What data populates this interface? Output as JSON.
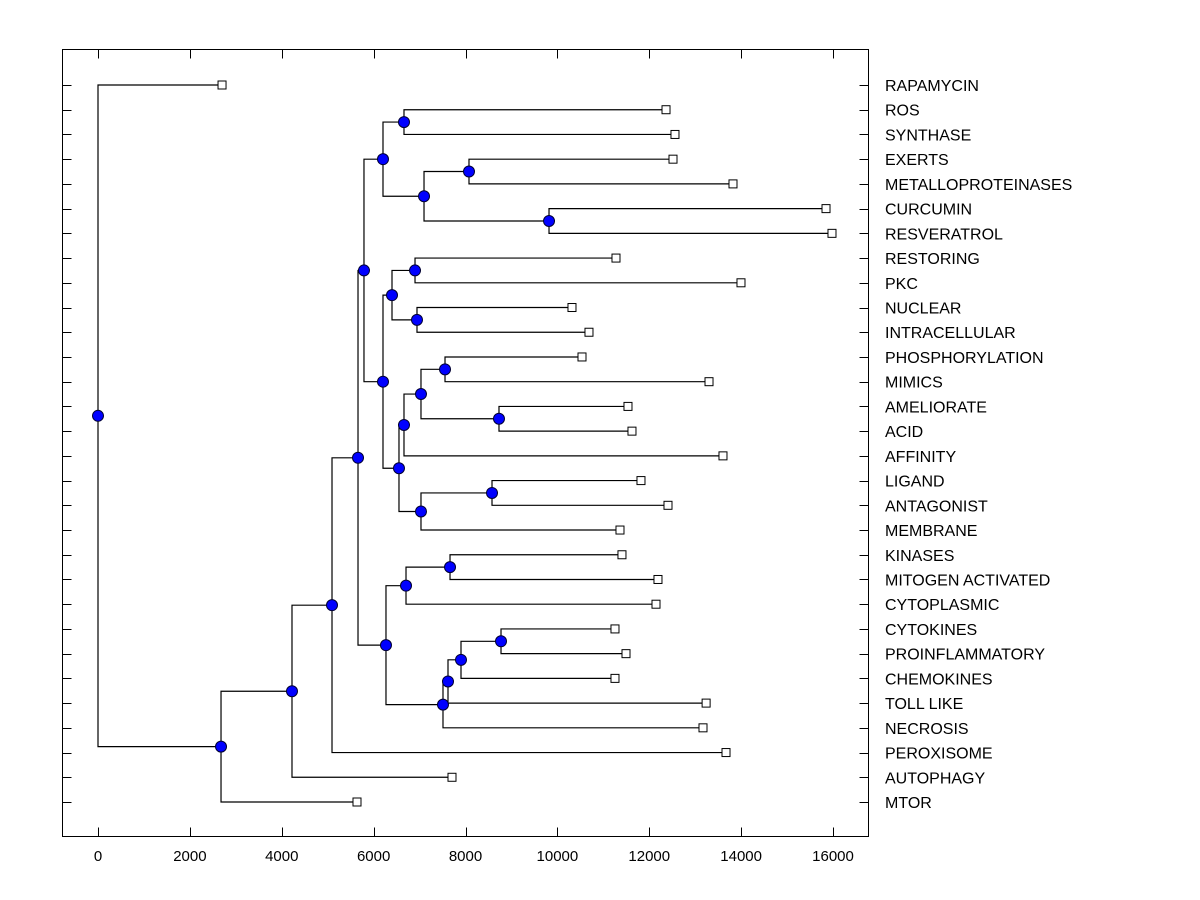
{
  "chart_data": {
    "type": "dendrogram",
    "title": "",
    "xlabel": "",
    "ylabel": "",
    "xlim": [
      -800,
      16800
    ],
    "x_ticks": [
      0,
      2000,
      4000,
      6000,
      8000,
      10000,
      12000,
      14000,
      16000
    ],
    "x_tick_labels": [
      "0",
      "2000",
      "4000",
      "6000",
      "8000",
      "10000",
      "12000",
      "14000",
      "16000"
    ],
    "grid": false,
    "leaf_order": [
      "RAPAMYCIN",
      "ROS",
      "SYNTHASE",
      "EXERTS",
      "METALLOPROTEINASES",
      "CURCUMIN",
      "RESVERATROL",
      "RESTORING",
      "PKC",
      "NUCLEAR",
      "INTRACELLULAR",
      "PHOSPHORYLATION",
      "MIMICS",
      "AMELIORATE",
      "ACID",
      "AFFINITY",
      "LIGAND",
      "ANTAGONIST",
      "MEMBRANE",
      "KINASES",
      "MITOGEN ACTIVATED",
      "CYTOPLASMIC",
      "CYTOKINES",
      "PROINFLAMMATORY",
      "CHEMOKINES",
      "TOLL LIKE",
      "NECROSIS",
      "PEROXISOME",
      "AUTOPHAGY",
      "MTOR"
    ],
    "leaves": {
      "RAPAMYCIN": 2700,
      "ROS": 12365,
      "SYNTHASE": 12560,
      "EXERTS": 12517,
      "METALLOPROTEINASES": 13823,
      "CURCUMIN": 15848,
      "RESVERATROL": 15978,
      "RESTORING": 11276,
      "PKC": 13997,
      "NUCLEAR": 10318,
      "INTRACELLULAR": 10688,
      "PHOSPHORYLATION": 10536,
      "MIMICS": 13301,
      "AMELIORATE": 11537,
      "ACID": 11624,
      "AFFINITY": 13605,
      "LIGAND": 11820,
      "ANTAGONIST": 12408,
      "MEMBRANE": 11363,
      "KINASES": 11406,
      "MITOGEN ACTIVATED": 12190,
      "CYTOPLASMIC": 12147,
      "CYTOKINES": 11254,
      "PROINFLAMMATORY": 11494,
      "CHEMOKINES": 11254,
      "TOLL LIKE": 13238,
      "NECROSIS": 13170,
      "PEROXISOME": 13671,
      "AUTOPHAGY": 7706,
      "MTOR": 5638
    },
    "nodes": [
      {
        "id": "root",
        "x": 0,
        "children": [
          "RAPAMYCIN",
          "n_e"
        ]
      },
      {
        "id": "n_e",
        "x": 2678,
        "children": [
          "n_d",
          "MTOR"
        ]
      },
      {
        "id": "n_d",
        "x": 4223,
        "children": [
          "n_c",
          "AUTOPHAGY"
        ]
      },
      {
        "id": "n_c",
        "x": 5094,
        "children": [
          "n_b",
          "PEROXISOME"
        ]
      },
      {
        "id": "n_b",
        "x": 5660,
        "children": [
          "n_a",
          "n_low"
        ]
      },
      {
        "id": "n_a",
        "x": 5790,
        "children": [
          "n_top",
          "n_mid"
        ]
      },
      {
        "id": "n_top",
        "x": 6204,
        "children": [
          "n_ros",
          "n_ex_res"
        ]
      },
      {
        "id": "n_ros",
        "x": 6661,
        "children": [
          "ROS",
          "SYNTHASE"
        ]
      },
      {
        "id": "n_ex_res",
        "x": 7097,
        "children": [
          "n_ex_met",
          "n_cur_res"
        ]
      },
      {
        "id": "n_ex_met",
        "x": 8076,
        "children": [
          "EXERTS",
          "METALLOPROTEINASES"
        ]
      },
      {
        "id": "n_cur_res",
        "x": 9818,
        "children": [
          "CURCUMIN",
          "RESVERATROL"
        ]
      },
      {
        "id": "n_mid",
        "x": 6204,
        "children": [
          "n_rest_intra",
          "n_phos_mem"
        ]
      },
      {
        "id": "n_rest_intra",
        "x": 6400,
        "children": [
          "n_rest_pkc",
          "n_nuc_int"
        ]
      },
      {
        "id": "n_rest_pkc",
        "x": 6901,
        "children": [
          "RESTORING",
          "PKC"
        ]
      },
      {
        "id": "n_nuc_int",
        "x": 6944,
        "children": [
          "NUCLEAR",
          "INTRACELLULAR"
        ]
      },
      {
        "id": "n_phos_mem",
        "x": 6552,
        "children": [
          "n_phos_aff",
          "n_lig_mem"
        ]
      },
      {
        "id": "n_phos_aff",
        "x": 6661,
        "children": [
          "n_phos_acid",
          "AFFINITY"
        ]
      },
      {
        "id": "n_phos_acid",
        "x": 7031,
        "children": [
          "n_phos_mim",
          "n_ame_acid"
        ]
      },
      {
        "id": "n_phos_mim",
        "x": 7554,
        "children": [
          "PHOSPHORYLATION",
          "MIMICS"
        ]
      },
      {
        "id": "n_ame_acid",
        "x": 8729,
        "children": [
          "AMELIORATE",
          "ACID"
        ]
      },
      {
        "id": "n_lig_mem",
        "x": 7031,
        "children": [
          "n_lig_ant",
          "MEMBRANE"
        ]
      },
      {
        "id": "n_lig_ant",
        "x": 8577,
        "children": [
          "LIGAND",
          "ANTAGONIST"
        ]
      },
      {
        "id": "n_low",
        "x": 6269,
        "children": [
          "n_kin_cyto",
          "n_nec"
        ]
      },
      {
        "id": "n_kin_cyto",
        "x": 6705,
        "children": [
          "n_kin_mit",
          "CYTOPLASMIC"
        ]
      },
      {
        "id": "n_kin_mit",
        "x": 7663,
        "children": [
          "KINASES",
          "MITOGEN ACTIVATED"
        ]
      },
      {
        "id": "n_nec",
        "x": 7510,
        "children": [
          "n_toll",
          "NECROSIS"
        ]
      },
      {
        "id": "n_toll",
        "x": 7619,
        "children": [
          "n_chem",
          "TOLL LIKE"
        ]
      },
      {
        "id": "n_chem",
        "x": 7902,
        "children": [
          "n_cyt_pro",
          "CHEMOKINES"
        ]
      },
      {
        "id": "n_cyt_pro",
        "x": 8773,
        "children": [
          "CYTOKINES",
          "PROINFLAMMATORY"
        ]
      }
    ],
    "colors": {
      "node_fill": "#0000ff",
      "node_stroke": "#000033",
      "leaf_fill": "#ffffff",
      "line": "#000000"
    }
  }
}
